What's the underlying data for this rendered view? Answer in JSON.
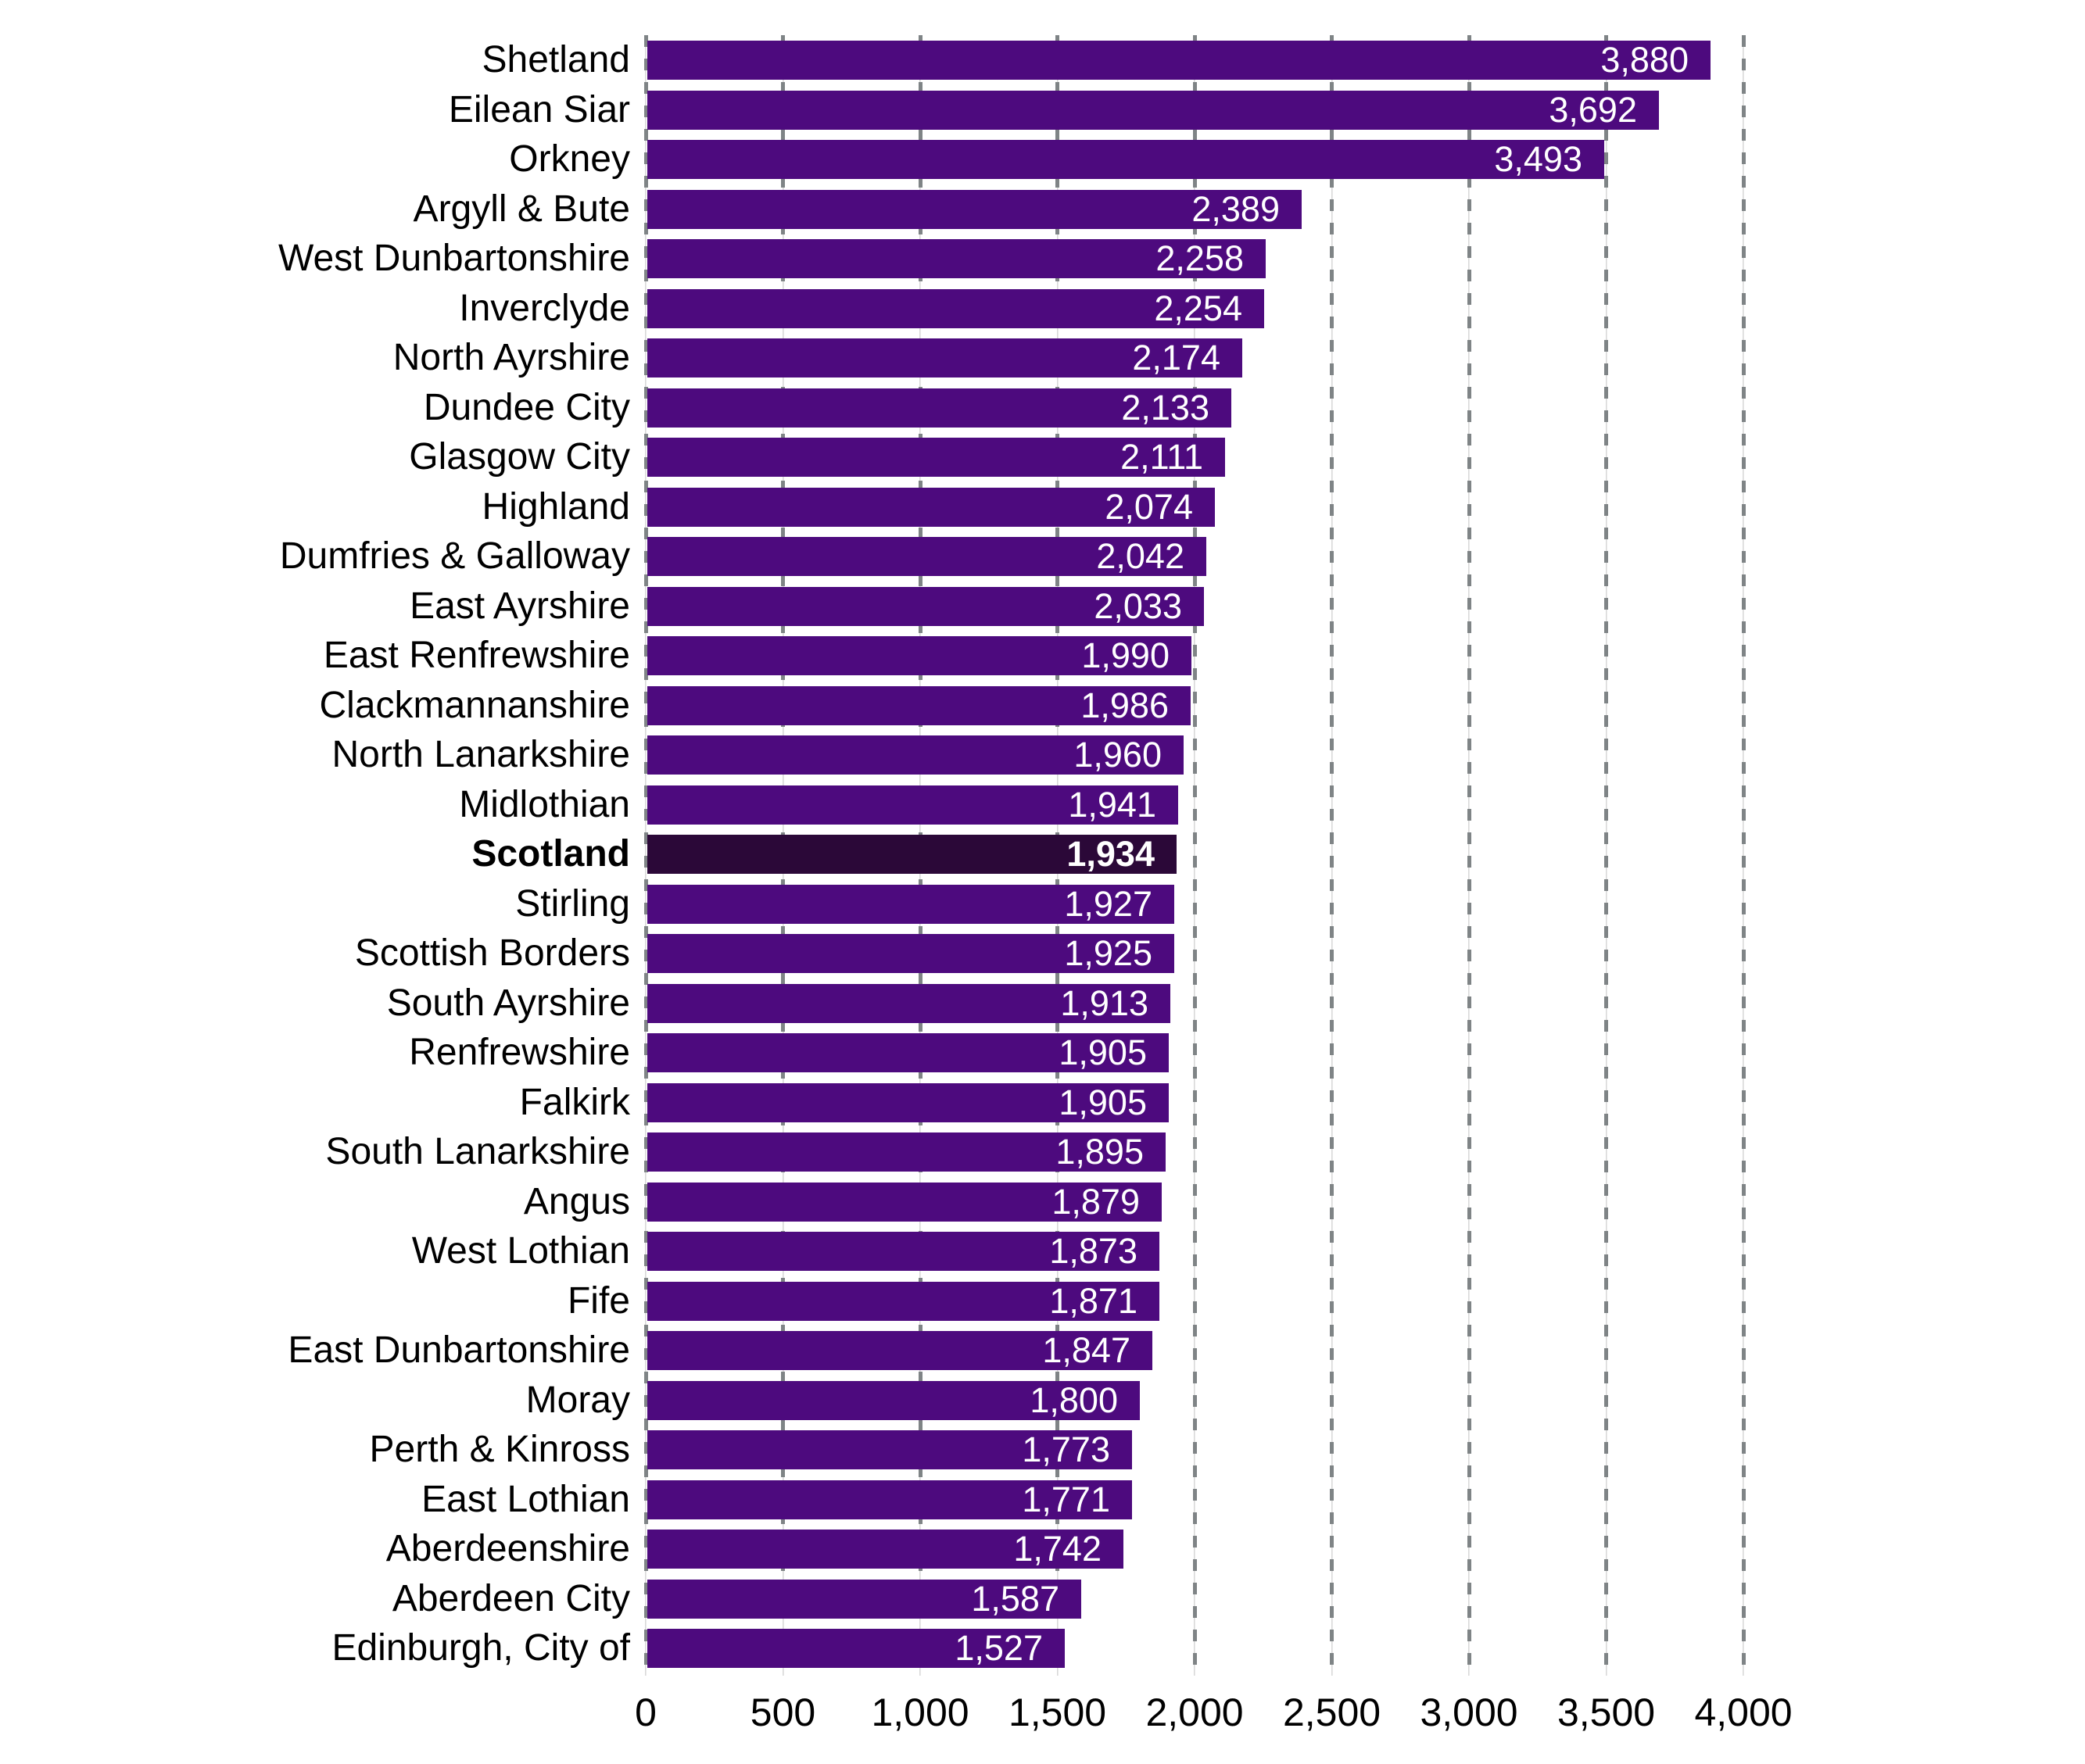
{
  "chart_data": {
    "type": "bar",
    "orientation": "horizontal",
    "title": "",
    "xlabel": "",
    "ylabel": "",
    "xlim": [
      0,
      4000
    ],
    "grid": "dashed-vertical",
    "legend": null,
    "categories": [
      "Shetland",
      "Eilean Siar",
      "Orkney",
      "Argyll & Bute",
      "West Dunbartonshire",
      "Inverclyde",
      "North Ayrshire",
      "Dundee City",
      "Glasgow City",
      "Highland",
      "Dumfries & Galloway",
      "East Ayrshire",
      "East Renfrewshire",
      "Clackmannanshire",
      "North Lanarkshire",
      "Midlothian",
      "Scotland",
      "Stirling",
      "Scottish Borders",
      "South Ayrshire",
      "Renfrewshire",
      "Falkirk",
      "South Lanarkshire",
      "Angus",
      "West Lothian",
      "Fife",
      "East Dunbartonshire",
      "Moray",
      "Perth & Kinross",
      "East Lothian",
      "Aberdeenshire",
      "Aberdeen City",
      "Edinburgh, City of"
    ],
    "values": [
      3880,
      3692,
      3493,
      2389,
      2258,
      2254,
      2174,
      2133,
      2111,
      2074,
      2042,
      2033,
      1990,
      1986,
      1960,
      1941,
      1934,
      1927,
      1925,
      1913,
      1905,
      1905,
      1895,
      1879,
      1873,
      1871,
      1847,
      1800,
      1773,
      1771,
      1742,
      1587,
      1527
    ],
    "value_labels": [
      "3,880",
      "3,692",
      "3,493",
      "2,389",
      "2,258",
      "2,254",
      "2,174",
      "2,133",
      "2,111",
      "2,074",
      "2,042",
      "2,033",
      "1,990",
      "1,986",
      "1,960",
      "1,941",
      "1,934",
      "1,927",
      "1,925",
      "1,913",
      "1,905",
      "1,905",
      "1,895",
      "1,879",
      "1,873",
      "1,871",
      "1,847",
      "1,800",
      "1,773",
      "1,771",
      "1,742",
      "1,587",
      "1,527"
    ],
    "highlight_index": 16,
    "highlight_category": "Scotland",
    "x_ticks": [
      {
        "value": 0,
        "label": "0"
      },
      {
        "value": 500,
        "label": "500"
      },
      {
        "value": 1000,
        "label": "1,000"
      },
      {
        "value": 1500,
        "label": "1,500"
      },
      {
        "value": 2000,
        "label": "2,000"
      },
      {
        "value": 2500,
        "label": "2,500"
      },
      {
        "value": 3000,
        "label": "3,000"
      },
      {
        "value": 3500,
        "label": "3,500"
      },
      {
        "value": 4000,
        "label": "4,000"
      }
    ],
    "colors": {
      "bar": "#4D0A7E",
      "highlight_bar": "#2B0838",
      "gridline": "#7F8486",
      "axis_text": "#000000",
      "value_text": "#FFFFFF"
    }
  }
}
